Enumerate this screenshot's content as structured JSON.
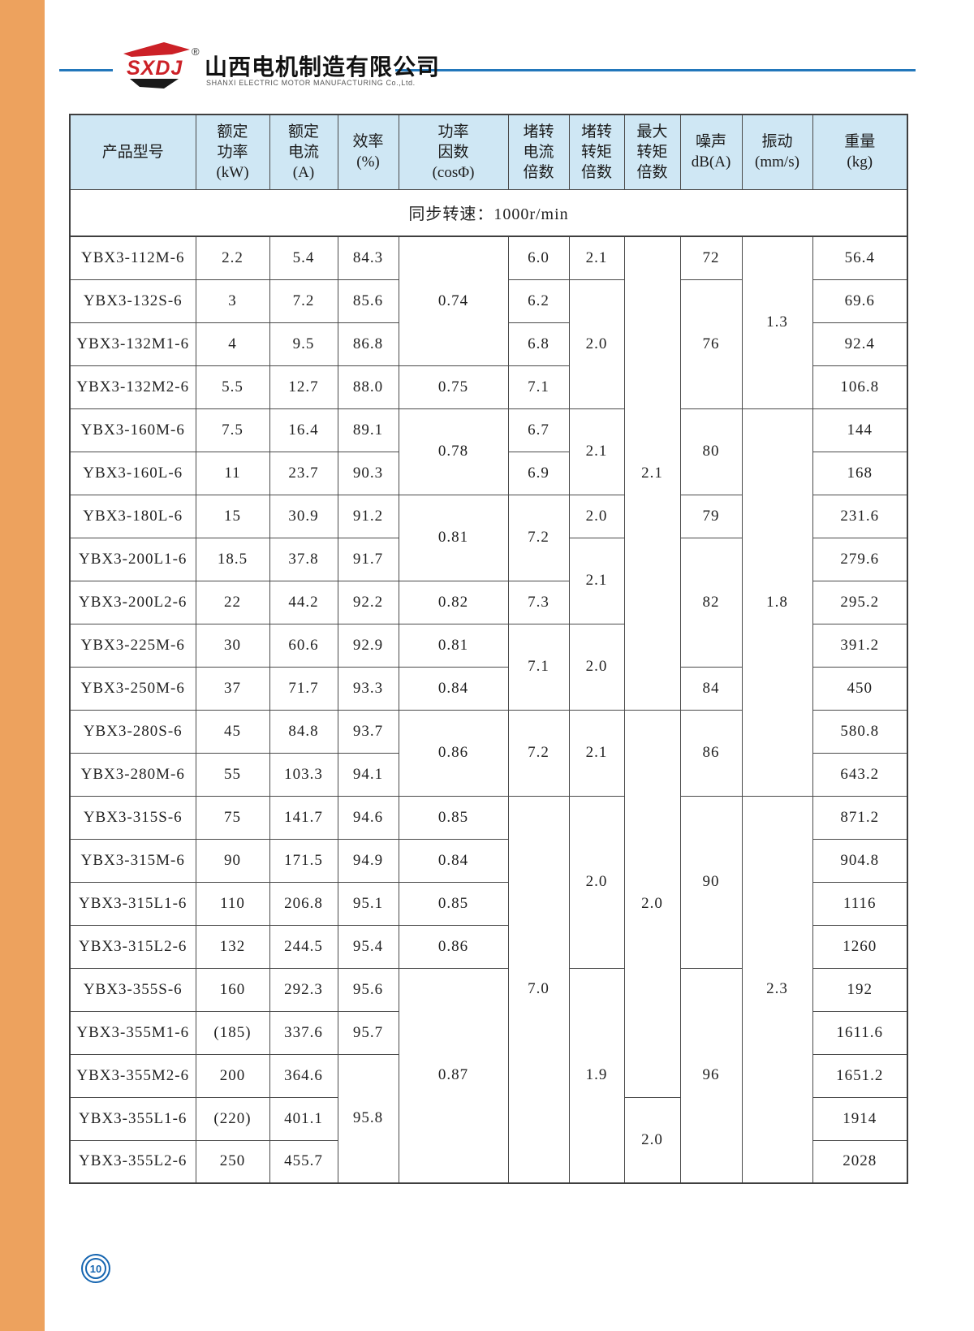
{
  "brand": {
    "logo_text": "SXDJ",
    "registered_mark": "®",
    "company_name_cn": "山西电机制造有限公司",
    "company_name_en": "SHANXI ELECTRIC MOTOR MANUFACTURING Co.,Ltd."
  },
  "page": {
    "number": "10"
  },
  "colors": {
    "accent_blue": "#2277bb",
    "logo_red": "#cc2127",
    "table_header_bg": "#cfe7f4",
    "left_strip_orange": "#eda25e",
    "badge_blue": "#1565b0"
  },
  "table": {
    "section_title": "同步转速：1000r/min",
    "column_headers": [
      [
        "产品型号"
      ],
      [
        "额定",
        "功率",
        "(kW)"
      ],
      [
        "额定",
        "电流",
        "(A)"
      ],
      [
        "效率",
        "(%)"
      ],
      [
        "功率",
        "因数",
        "(cosΦ)"
      ],
      [
        "堵转",
        "电流",
        "倍数"
      ],
      [
        "堵转",
        "转矩",
        "倍数"
      ],
      [
        "最大",
        "转矩",
        "倍数"
      ],
      [
        "噪声",
        "dB(A)"
      ],
      [
        "振动",
        "(mm/s)"
      ],
      [
        "重量",
        "(kg)"
      ]
    ],
    "rows": [
      {
        "cells": [
          {
            "v": "YBX3-112M-6"
          },
          {
            "v": "2.2"
          },
          {
            "v": "5.4"
          },
          {
            "v": "84.3"
          },
          {
            "v": "0.74",
            "rs": 3
          },
          {
            "v": "6.0"
          },
          {
            "v": "2.1"
          },
          {
            "v": "2.1",
            "rs": 11
          },
          {
            "v": "72"
          },
          {
            "v": "1.3",
            "rs": 4
          },
          {
            "v": "56.4"
          }
        ]
      },
      {
        "cells": [
          {
            "v": "YBX3-132S-6"
          },
          {
            "v": "3"
          },
          {
            "v": "7.2"
          },
          {
            "v": "85.6"
          },
          {
            "v": "6.2"
          },
          {
            "v": "2.0",
            "rs": 3
          },
          {
            "v": "76",
            "rs": 3
          },
          {
            "v": "69.6"
          }
        ]
      },
      {
        "cells": [
          {
            "v": "YBX3-132M1-6"
          },
          {
            "v": "4"
          },
          {
            "v": "9.5"
          },
          {
            "v": "86.8"
          },
          {
            "v": "6.8"
          },
          {
            "v": "92.4"
          }
        ]
      },
      {
        "cells": [
          {
            "v": "YBX3-132M2-6"
          },
          {
            "v": "5.5"
          },
          {
            "v": "12.7"
          },
          {
            "v": "88.0"
          },
          {
            "v": "0.75"
          },
          {
            "v": "7.1"
          },
          {
            "v": "106.8"
          }
        ]
      },
      {
        "cells": [
          {
            "v": "YBX3-160M-6"
          },
          {
            "v": "7.5"
          },
          {
            "v": "16.4"
          },
          {
            "v": "89.1"
          },
          {
            "v": "0.78",
            "rs": 2
          },
          {
            "v": "6.7"
          },
          {
            "v": "2.1",
            "rs": 2
          },
          {
            "v": "80",
            "rs": 2
          },
          {
            "v": "1.8",
            "rs": 9
          },
          {
            "v": "144"
          }
        ]
      },
      {
        "cells": [
          {
            "v": "YBX3-160L-6"
          },
          {
            "v": "11"
          },
          {
            "v": "23.7"
          },
          {
            "v": "90.3"
          },
          {
            "v": "6.9"
          },
          {
            "v": "168"
          }
        ]
      },
      {
        "cells": [
          {
            "v": "YBX3-180L-6"
          },
          {
            "v": "15"
          },
          {
            "v": "30.9"
          },
          {
            "v": "91.2"
          },
          {
            "v": "0.81",
            "rs": 2
          },
          {
            "v": "7.2",
            "rs": 2
          },
          {
            "v": "2.0"
          },
          {
            "v": "79"
          },
          {
            "v": "231.6"
          }
        ]
      },
      {
        "cells": [
          {
            "v": "YBX3-200L1-6"
          },
          {
            "v": "18.5"
          },
          {
            "v": "37.8"
          },
          {
            "v": "91.7"
          },
          {
            "v": "2.1",
            "rs": 2
          },
          {
            "v": "82",
            "rs": 3
          },
          {
            "v": "279.6"
          }
        ]
      },
      {
        "cells": [
          {
            "v": "YBX3-200L2-6"
          },
          {
            "v": "22"
          },
          {
            "v": "44.2"
          },
          {
            "v": "92.2"
          },
          {
            "v": "0.82"
          },
          {
            "v": "7.3"
          },
          {
            "v": "295.2"
          }
        ]
      },
      {
        "cells": [
          {
            "v": "YBX3-225M-6"
          },
          {
            "v": "30"
          },
          {
            "v": "60.6"
          },
          {
            "v": "92.9"
          },
          {
            "v": "0.81"
          },
          {
            "v": "7.1",
            "rs": 2
          },
          {
            "v": "2.0",
            "rs": 2
          },
          {
            "v": "391.2"
          }
        ]
      },
      {
        "cells": [
          {
            "v": "YBX3-250M-6"
          },
          {
            "v": "37"
          },
          {
            "v": "71.7"
          },
          {
            "v": "93.3"
          },
          {
            "v": "0.84"
          },
          {
            "v": "84"
          },
          {
            "v": "450"
          }
        ]
      },
      {
        "cells": [
          {
            "v": "YBX3-280S-6"
          },
          {
            "v": "45"
          },
          {
            "v": "84.8"
          },
          {
            "v": "93.7"
          },
          {
            "v": "0.86",
            "rs": 2
          },
          {
            "v": "7.2",
            "rs": 2
          },
          {
            "v": "2.1",
            "rs": 2
          },
          {
            "v": "2.0",
            "rs": 9
          },
          {
            "v": "86",
            "rs": 2
          },
          {
            "v": "580.8"
          }
        ]
      },
      {
        "cells": [
          {
            "v": "YBX3-280M-6"
          },
          {
            "v": "55"
          },
          {
            "v": "103.3"
          },
          {
            "v": "94.1"
          },
          {
            "v": "643.2"
          }
        ]
      },
      {
        "cells": [
          {
            "v": "YBX3-315S-6"
          },
          {
            "v": "75"
          },
          {
            "v": "141.7"
          },
          {
            "v": "94.6"
          },
          {
            "v": "0.85"
          },
          {
            "v": "7.0",
            "rs": 9
          },
          {
            "v": "2.0",
            "rs": 4
          },
          {
            "v": "90",
            "rs": 4
          },
          {
            "v": "2.3",
            "rs": 9
          },
          {
            "v": "871.2"
          }
        ]
      },
      {
        "cells": [
          {
            "v": "YBX3-315M-6"
          },
          {
            "v": "90"
          },
          {
            "v": "171.5"
          },
          {
            "v": "94.9"
          },
          {
            "v": "0.84"
          },
          {
            "v": "904.8"
          }
        ]
      },
      {
        "cells": [
          {
            "v": "YBX3-315L1-6"
          },
          {
            "v": "110"
          },
          {
            "v": "206.8"
          },
          {
            "v": "95.1"
          },
          {
            "v": "0.85"
          },
          {
            "v": "1116"
          }
        ]
      },
      {
        "cells": [
          {
            "v": "YBX3-315L2-6"
          },
          {
            "v": "132"
          },
          {
            "v": "244.5"
          },
          {
            "v": "95.4"
          },
          {
            "v": "0.86"
          },
          {
            "v": "1260"
          }
        ]
      },
      {
        "cells": [
          {
            "v": "YBX3-355S-6"
          },
          {
            "v": "160"
          },
          {
            "v": "292.3"
          },
          {
            "v": "95.6"
          },
          {
            "v": "0.87",
            "rs": 5
          },
          {
            "v": "1.9",
            "rs": 5
          },
          {
            "v": "96",
            "rs": 5
          },
          {
            "v": "192"
          }
        ]
      },
      {
        "cells": [
          {
            "v": "YBX3-355M1-6"
          },
          {
            "v": "(185)"
          },
          {
            "v": "337.6"
          },
          {
            "v": "95.7"
          },
          {
            "v": "1611.6"
          }
        ]
      },
      {
        "cells": [
          {
            "v": "YBX3-355M2-6"
          },
          {
            "v": "200"
          },
          {
            "v": "364.6"
          },
          {
            "v": "95.8",
            "rs": 3
          },
          {
            "v": "1651.2"
          }
        ]
      },
      {
        "cells": [
          {
            "v": "YBX3-355L1-6"
          },
          {
            "v": "(220)"
          },
          {
            "v": "401.1"
          },
          {
            "v": "2.0",
            "rs": 2
          },
          {
            "v": "1914"
          }
        ]
      },
      {
        "cells": [
          {
            "v": "YBX3-355L2-6"
          },
          {
            "v": "250"
          },
          {
            "v": "455.7"
          },
          {
            "v": "2028"
          }
        ]
      }
    ]
  }
}
